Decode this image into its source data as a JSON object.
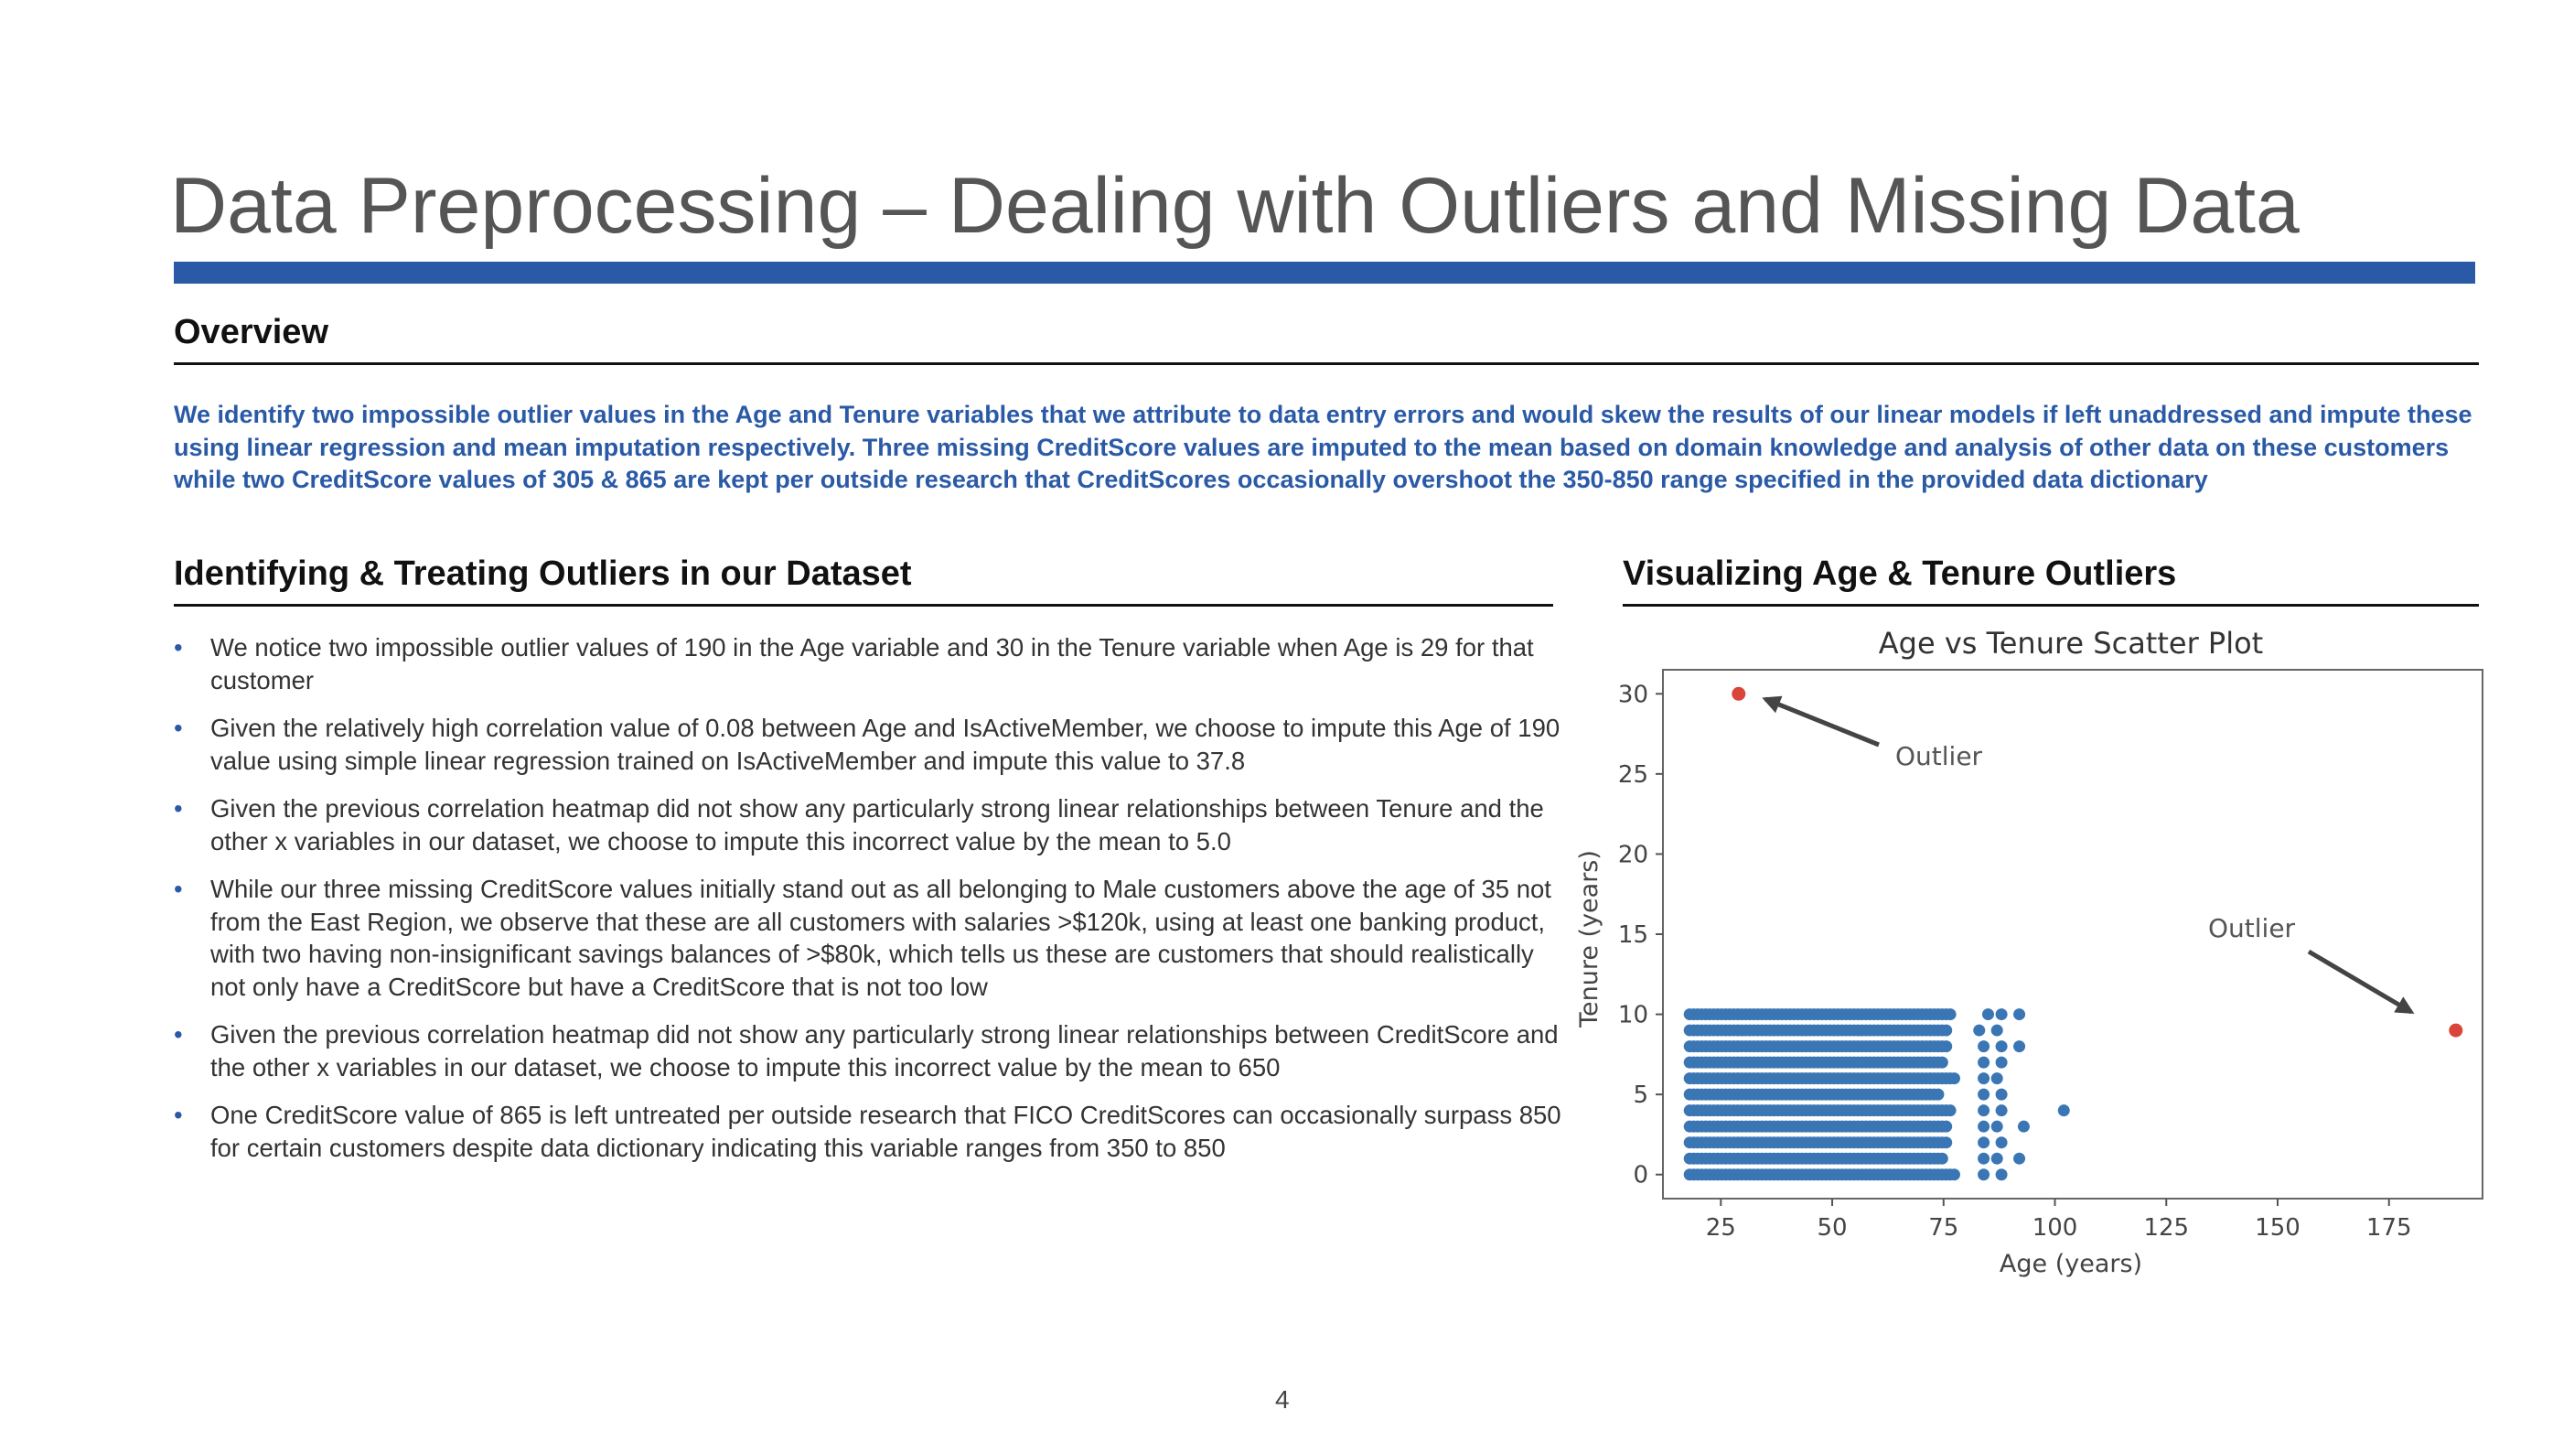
{
  "slide": {
    "title": "Data Preprocessing – Dealing with Outliers and Missing Data",
    "page_number": "4"
  },
  "overview": {
    "heading": "Overview",
    "text": "We identify two impossible outlier values in the Age and Tenure variables that we attribute to data entry errors and would skew the results of our linear models if left unaddressed and impute these using linear regression and mean imputation respectively. Three missing CreditScore values are imputed to the mean based on domain knowledge and analysis of other data on these customers while two CreditScore values of 305 & 865 are kept per outside research that CreditScores occasionally overshoot the 350-850 range specified in the provided data dictionary"
  },
  "left_section": {
    "heading": "Identifying & Treating Outliers in our Dataset",
    "bullet_glyph": "•",
    "bullets": [
      "We notice two impossible outlier values of 190 in the Age variable and 30 in the Tenure variable when Age is 29 for that customer",
      "Given the relatively high correlation value of 0.08 between Age and IsActiveMember, we choose to impute this Age of 190 value using simple linear regression trained on IsActiveMember and impute this value to 37.8",
      "Given the previous correlation heatmap did not show any particularly strong linear relationships between Tenure and the other x variables in our dataset, we choose to impute this incorrect value by the mean to 5.0",
      "While our three missing CreditScore values initially stand out as all belonging to Male customers above the age of 35 not from the East Region, we observe that these are all customers with salaries >$120k, using at least one banking product, with two having non-insignificant savings balances of >$80k, which tells us these are customers that should realistically not only have a CreditScore but have a CreditScore that is not too low",
      "Given the previous correlation heatmap did not show any particularly strong linear relationships between CreditScore and the other x variables in our dataset, we choose to impute this incorrect value by the mean to 650",
      "One CreditScore value of 865 is left untreated per outside research that FICO CreditScores can occasionally surpass 850 for certain customers despite data dictionary indicating this variable ranges from 350 to 850"
    ]
  },
  "right_section": {
    "heading": "Visualizing Age & Tenure Outliers"
  },
  "colors": {
    "accent": "#2a5aa6",
    "title_text": "#555555",
    "point": "#3a76b4",
    "outlier_point": "#d9453a",
    "annotation_arrow": "#444444"
  },
  "chart_data": {
    "type": "scatter",
    "title": "Age vs Tenure Scatter Plot",
    "xlabel": "Age (years)",
    "ylabel": "Tenure (years)",
    "xlim": [
      12,
      196
    ],
    "ylim": [
      -1.5,
      31.5
    ],
    "xticks": [
      25,
      50,
      75,
      100,
      125,
      150,
      175
    ],
    "yticks": [
      0,
      5,
      10,
      15,
      20,
      25,
      30
    ],
    "grid": false,
    "main_cluster": {
      "age_range": [
        18,
        92
      ],
      "tenure_values": [
        0,
        1,
        2,
        3,
        4,
        5,
        6,
        7,
        8,
        9,
        10
      ]
    },
    "extra_points": [
      {
        "x": 85,
        "y": 10
      },
      {
        "x": 88,
        "y": 10
      },
      {
        "x": 92,
        "y": 10
      },
      {
        "x": 83,
        "y": 9
      },
      {
        "x": 87,
        "y": 9
      },
      {
        "x": 84,
        "y": 8
      },
      {
        "x": 88,
        "y": 8
      },
      {
        "x": 92,
        "y": 8
      },
      {
        "x": 84,
        "y": 7
      },
      {
        "x": 88,
        "y": 7
      },
      {
        "x": 84,
        "y": 6
      },
      {
        "x": 87,
        "y": 6
      },
      {
        "x": 84,
        "y": 5
      },
      {
        "x": 88,
        "y": 5
      },
      {
        "x": 84,
        "y": 4
      },
      {
        "x": 88,
        "y": 4
      },
      {
        "x": 102,
        "y": 4
      },
      {
        "x": 84,
        "y": 3
      },
      {
        "x": 87,
        "y": 3
      },
      {
        "x": 93,
        "y": 3
      },
      {
        "x": 84,
        "y": 2
      },
      {
        "x": 88,
        "y": 2
      },
      {
        "x": 84,
        "y": 1
      },
      {
        "x": 87,
        "y": 1
      },
      {
        "x": 92,
        "y": 1
      },
      {
        "x": 84,
        "y": 0
      },
      {
        "x": 88,
        "y": 0
      }
    ],
    "outliers": [
      {
        "x": 29,
        "y": 30,
        "label": "Outlier"
      },
      {
        "x": 190,
        "y": 9,
        "label": "Outlier"
      }
    ]
  }
}
